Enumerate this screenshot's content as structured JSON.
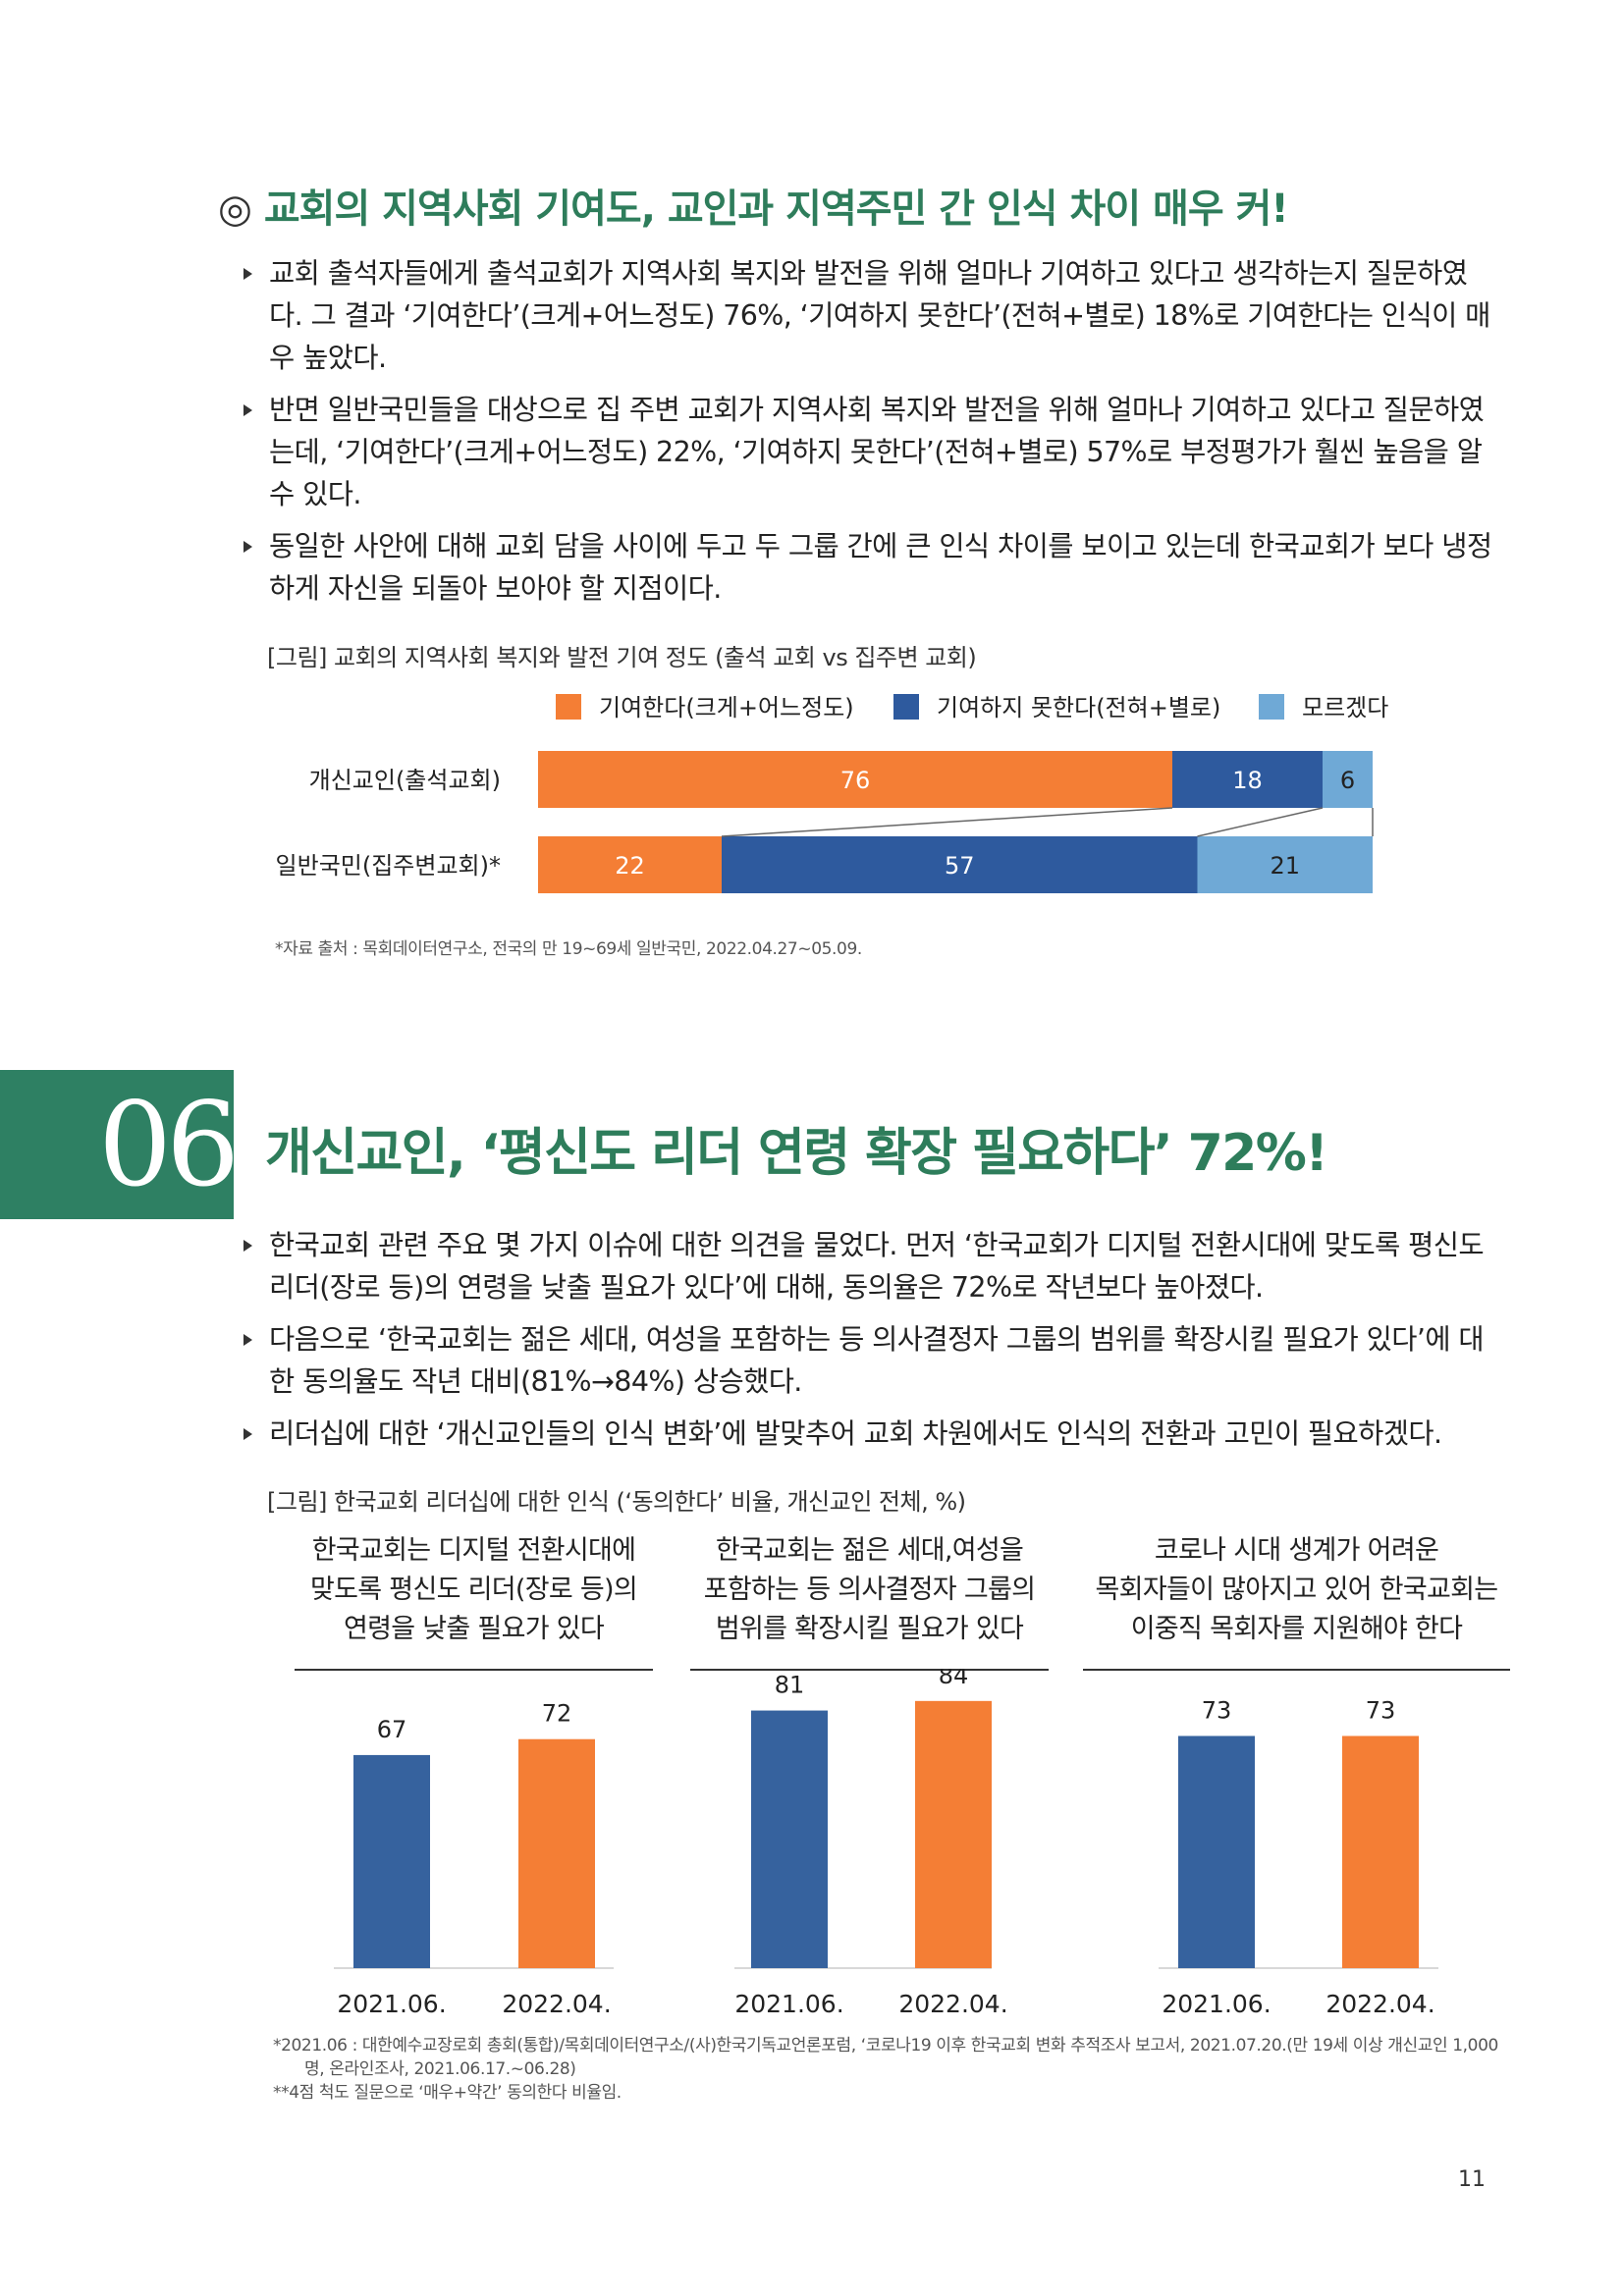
{
  "section1": {
    "mark": "◎",
    "title": "교회의 지역사회 기여도, 교인과 지역주민 간 인식 차이 매우 커!",
    "bullets": [
      "교회 출석자들에게 출석교회가 지역사회 복지와 발전을 위해 얼마나 기여하고 있다고 생각하는지 질문하였다. 그 결과 ‘기여한다’(크게+어느정도) 76%, ‘기여하지 못한다’(전혀+별로) 18%로 기여한다는 인식이 매우 높았다.",
      "반면 일반국민들을 대상으로 집 주변 교회가 지역사회 복지와 발전을 위해 얼마나 기여하고 있다고 질문하였는데, ‘기여한다’(크게+어느정도) 22%, ‘기여하지 못한다’(전혀+별로) 57%로 부정평가가 훨씬 높음을 알 수 있다.",
      "동일한 사안에 대해 교회 담을 사이에 두고 두 그룹 간에 큰 인식 차이를 보이고 있는데 한국교회가 보다 냉정하게 자신을 되돌아 보아야 할 지점이다."
    ],
    "figure_caption": "[그림] 교회의 지역사회 복지와 발전 기여 정도 (출석 교회 vs 집주변 교회)",
    "source_note": "*자료 출처 : 목회데이터연구소, 전국의 만 19~69세 일반국민, 2022.04.27~05.09."
  },
  "section2": {
    "number": "06",
    "title": "개신교인, ‘평신도 리더 연령 확장 필요하다’ 72%!",
    "bullets": [
      "한국교회 관련 주요 몇 가지 이슈에 대한 의견을 물었다. 먼저 ‘한국교회가 디지털 전환시대에 맞도록 평신도 리더(장로 등)의 연령을 낮출 필요가 있다’에 대해, 동의율은 72%로 작년보다 높아졌다.",
      "다음으로 ‘한국교회는 젊은 세대, 여성을 포함하는 등 의사결정자 그룹의 범위를 확장시킬 필요가 있다’에 대한 동의율도 작년 대비(81%→84%) 상승했다.",
      "리더십에 대한 ‘개신교인들의 인식 변화’에 발맞추어 교회 차원에서도 인식의 전환과 고민이 필요하겠다."
    ],
    "figure_caption": "[그림] 한국교회 리더십에 대한 인식 (‘동의한다’ 비율, 개신교인 전체, %)",
    "notes": [
      "*2021.06 : 대한예수교장로회 총회(통합)/목회데이터연구소/(사)한국기독교언론포럼, ‘코로나19 이후 한국교회 변화 추적조사 보고서, 2021.07.20.(만 19세 이상 개신교인 1,000명, 온라인조사, 2021.06.17.~06.28)",
      "**4점 척도 질문으로 ‘매우+약간’ 동의한다 비율임."
    ]
  },
  "page_number": "11",
  "chart_data": [
    {
      "type": "bar",
      "orientation": "horizontal",
      "stacked": true,
      "categories": [
        "개신교인(출석교회)",
        "일반국민(집주변교회)*"
      ],
      "series": [
        {
          "name": "기여한다(크게+어느정도)",
          "values": [
            76,
            22
          ],
          "color": "#f47e35"
        },
        {
          "name": "기여하지 못한다(전혀+별로)",
          "values": [
            18,
            57
          ],
          "color": "#2e5a9e"
        },
        {
          "name": "모르겠다",
          "values": [
            6,
            21
          ],
          "color": "#6fa9d6"
        }
      ],
      "xlim": [
        0,
        100
      ],
      "legend": "top"
    },
    {
      "type": "bar",
      "x": [
        "2021.06.",
        "2022.04."
      ],
      "ylim": [
        0,
        100
      ],
      "groups": [
        {
          "title": "한국교회는 디지털 전환시대에 맞도록 평신도 리더(장로 등)의 연령을 낮출 필요가 있다",
          "title_lines": [
            "한국교회는 디지털 전환시대에",
            "맞도록 평신도 리더(장로 등)의",
            "연령을 낮출 필요가 있다"
          ],
          "values": [
            67,
            72
          ]
        },
        {
          "title": "한국교회는 젊은 세대,여성을 포함하는 등 의사결정자 그룹의 범위를 확장시킬 필요가 있다",
          "title_lines": [
            "한국교회는 젊은 세대,여성을",
            "포함하는 등 의사결정자 그룹의",
            "범위를 확장시킬 필요가 있다"
          ],
          "values": [
            81,
            84
          ]
        },
        {
          "title": "코로나 시대 생계가 어려운 목회자들이 많아지고 있어 한국교회는 이중직 목회자를 지원해야 한다",
          "title_lines": [
            "코로나 시대 생계가 어려운",
            "목회자들이 많아지고 있어 한국교회는",
            "이중직 목회자를 지원해야 한다"
          ],
          "values": [
            73,
            73
          ]
        }
      ],
      "colors": [
        "#36629e",
        "#f47e35"
      ],
      "grid": false
    }
  ]
}
